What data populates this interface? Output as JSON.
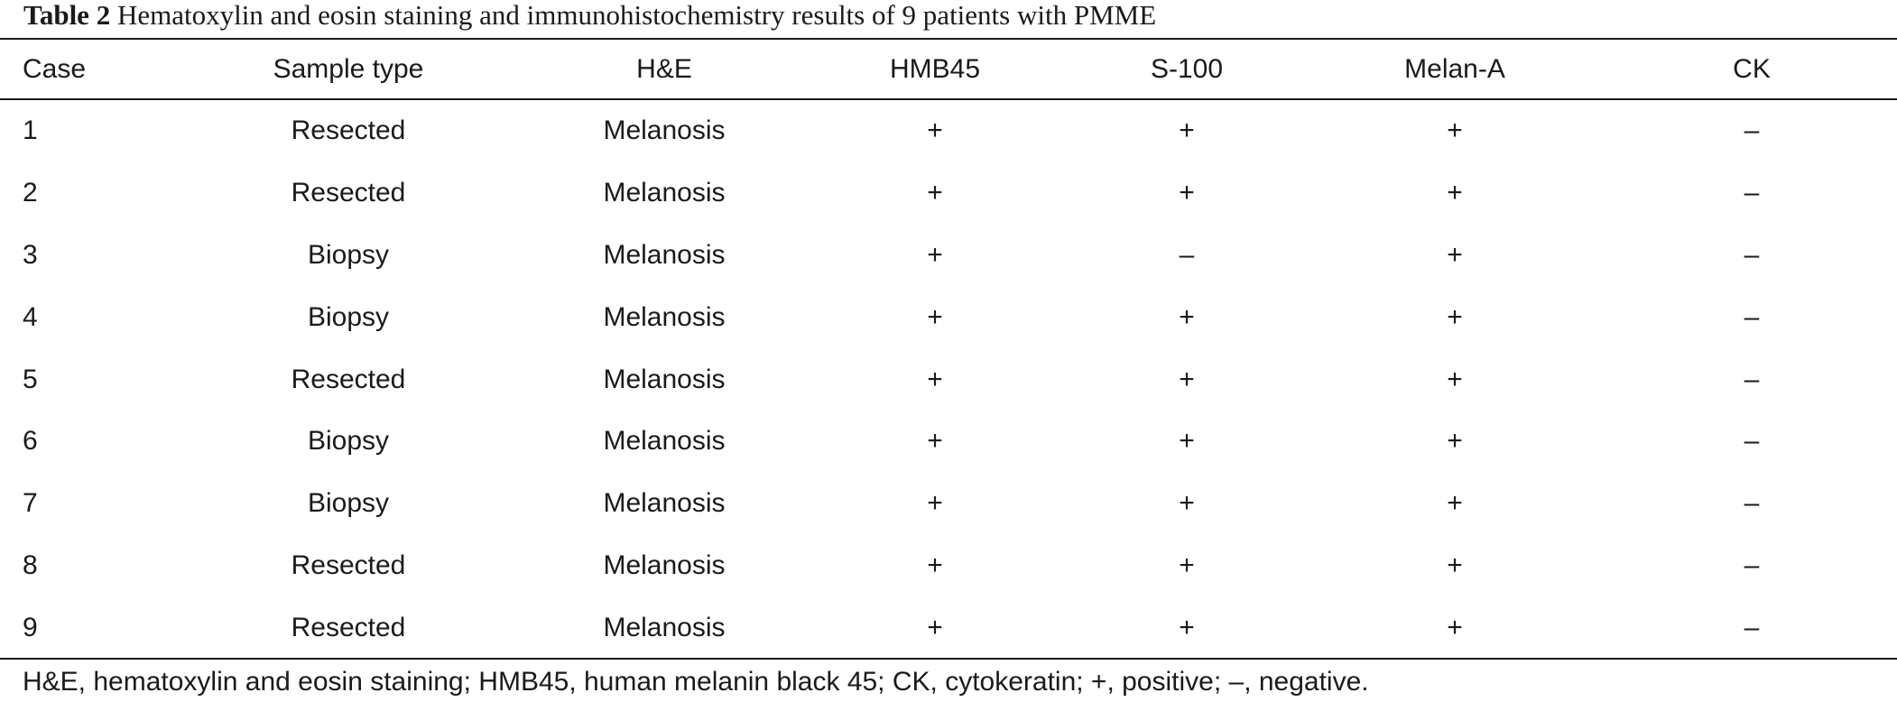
{
  "caption": {
    "label": "Table 2",
    "text": "Hematoxylin and eosin staining and immunohistochemistry results of 9 patients with PMME"
  },
  "table": {
    "columns": [
      "Case",
      "Sample type",
      "H&E",
      "HMB45",
      "S-100",
      "Melan-A",
      "CK"
    ],
    "rows": [
      [
        "1",
        "Resected",
        "Melanosis",
        "+",
        "+",
        "+",
        "–"
      ],
      [
        "2",
        "Resected",
        "Melanosis",
        "+",
        "+",
        "+",
        "–"
      ],
      [
        "3",
        "Biopsy",
        "Melanosis",
        "+",
        "–",
        "+",
        "–"
      ],
      [
        "4",
        "Biopsy",
        "Melanosis",
        "+",
        "+",
        "+",
        "–"
      ],
      [
        "5",
        "Resected",
        "Melanosis",
        "+",
        "+",
        "+",
        "–"
      ],
      [
        "6",
        "Biopsy",
        "Melanosis",
        "+",
        "+",
        "+",
        "–"
      ],
      [
        "7",
        "Biopsy",
        "Melanosis",
        "+",
        "+",
        "+",
        "–"
      ],
      [
        "8",
        "Resected",
        "Melanosis",
        "+",
        "+",
        "+",
        "–"
      ],
      [
        "9",
        "Resected",
        "Melanosis",
        "+",
        "+",
        "+",
        "–"
      ]
    ]
  },
  "footnote": "H&E, hematoxylin and eosin staining; HMB45, human melanin black 45; CK, cytokeratin; +, positive; –, negative."
}
